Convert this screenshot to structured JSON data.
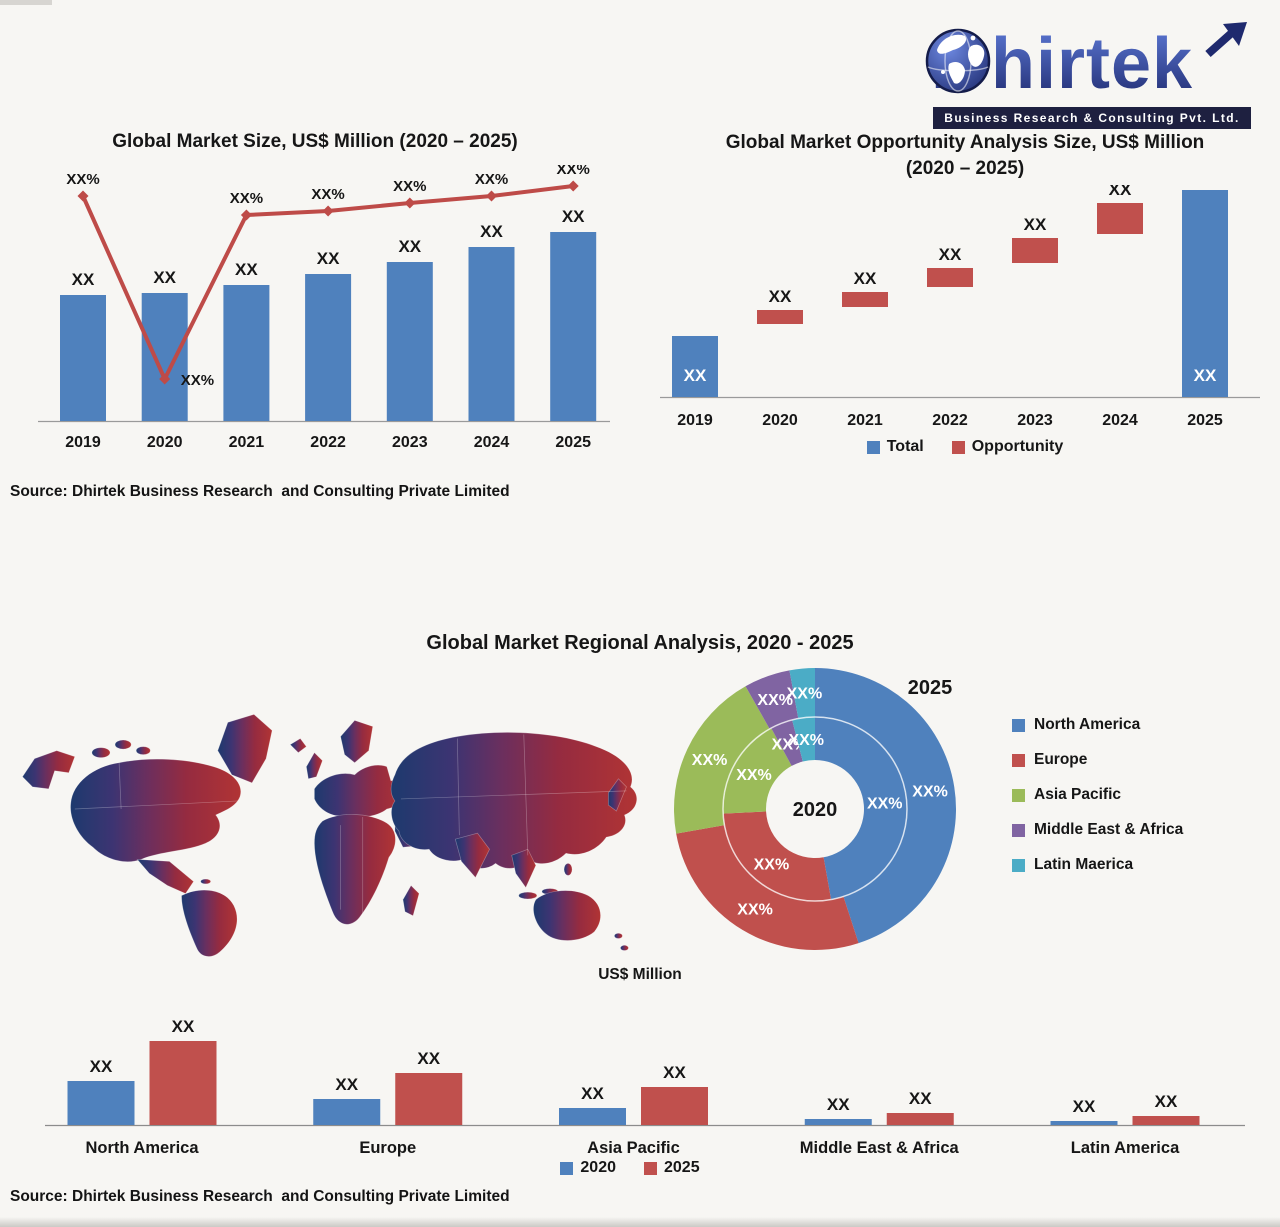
{
  "background": "#f7f6f3",
  "logo": {
    "brand_initial": "D",
    "brand_rest": "hirtek",
    "tagline": "Business Research & Consulting Pvt. Ltd.",
    "brand_color_top": "#5d79d6",
    "brand_color_bottom": "#1f2a6e",
    "tagline_bg": "#1e2040"
  },
  "source_note_top": "Source: Dhirtek Business Research  and Consulting Private Limited",
  "source_note_bottom": "Source: Dhirtek Business Research  and Consulting Private Limited",
  "colors": {
    "blue": "#4F81BD",
    "red": "#C0504D",
    "line_red": "#BE4B48",
    "green": "#9BBB59",
    "purple": "#8064A2",
    "teal": "#4BACC6",
    "text": "#161616",
    "axis": "#9a9a9a"
  },
  "chart_data": [
    {
      "id": "market-size",
      "type": "bar",
      "title": "Global Market Size, US$ Million (2020 – 2025)",
      "categories": [
        "2019",
        "2020",
        "2021",
        "2022",
        "2023",
        "2024",
        "2025"
      ],
      "bar_labels": [
        "XX",
        "XX",
        "XX",
        "XX",
        "XX",
        "XX",
        "XX"
      ],
      "bar_values_rel": [
        126,
        128,
        136,
        147,
        159,
        174,
        189
      ],
      "line_labels": [
        "XX%",
        "XX%",
        "XX%",
        "XX%",
        "XX%",
        "XX%",
        "XX%"
      ],
      "line_values_rel": [
        225,
        42,
        206,
        210,
        218,
        225,
        235
      ],
      "grid": false,
      "bar_color": "#4F81BD",
      "line_color": "#BE4B48"
    },
    {
      "id": "opportunity",
      "type": "waterfall",
      "title_line1": "Global Market Opportunity Analysis Size, US$ Million",
      "title_line2": "(2020 – 2025)",
      "categories": [
        "2019",
        "2020",
        "2021",
        "2022",
        "2023",
        "2024",
        "2025"
      ],
      "bars": [
        {
          "category": "2019",
          "series": "Total",
          "base_rel": 0,
          "height_rel": 61,
          "label": "XX",
          "label_pos": "inside"
        },
        {
          "category": "2020",
          "series": "Opportunity",
          "base_rel": 73,
          "height_rel": 14,
          "label": "XX",
          "label_pos": "above"
        },
        {
          "category": "2021",
          "series": "Opportunity",
          "base_rel": 90,
          "height_rel": 15,
          "label": "XX",
          "label_pos": "above"
        },
        {
          "category": "2022",
          "series": "Opportunity",
          "base_rel": 110,
          "height_rel": 19,
          "label": "XX",
          "label_pos": "above"
        },
        {
          "category": "2023",
          "series": "Opportunity",
          "base_rel": 134,
          "height_rel": 25,
          "label": "XX",
          "label_pos": "above"
        },
        {
          "category": "2024",
          "series": "Opportunity",
          "base_rel": 163,
          "height_rel": 31,
          "label": "XX",
          "label_pos": "above"
        },
        {
          "category": "2025",
          "series": "Total",
          "base_rel": 0,
          "height_rel": 207,
          "label": "XX",
          "label_pos": "inside"
        }
      ],
      "legend": [
        {
          "label": "Total",
          "color": "#4F81BD"
        },
        {
          "label": "Opportunity",
          "color": "#C0504D"
        }
      ]
    },
    {
      "id": "regional-donut",
      "type": "donut",
      "title": "Global Market Regional Analysis, 2020 - 2025",
      "center_year": "2020",
      "outer_year": "2025",
      "legend": [
        {
          "label": "North America",
          "color": "#4F81BD"
        },
        {
          "label": "Europe",
          "color": "#C0504D"
        },
        {
          "label": "Asia Pacific",
          "color": "#9BBB59"
        },
        {
          "label": "Middle East & Africa",
          "color": "#8064A2"
        },
        {
          "label": "Latin Maerica",
          "color": "#4BACC6"
        }
      ],
      "rings": {
        "inner": {
          "year": "2020",
          "shares_pct": [
            47.2,
            27.0,
            17.9,
            3.9,
            4.0
          ],
          "labels": [
            "XX%",
            "XX%",
            "XX%",
            "XX%",
            "XX%"
          ]
        },
        "outer": {
          "year": "2025",
          "shares_pct": [
            45.0,
            27.2,
            19.6,
            5.3,
            2.9
          ],
          "labels": [
            "XX%",
            "XX%",
            "XX%",
            "XX%",
            "XX%"
          ]
        }
      }
    },
    {
      "id": "regional-bars",
      "type": "bar",
      "title": "US$ Million",
      "categories": [
        "North America",
        "Europe",
        "Asia Pacific",
        "Middle East & Africa",
        "Latin America"
      ],
      "series": [
        {
          "name": "2020",
          "color": "#4F81BD",
          "values_rel": [
            44,
            26,
            17,
            6,
            4
          ],
          "labels": [
            "XX",
            "XX",
            "XX",
            "XX",
            "XX"
          ]
        },
        {
          "name": "2025",
          "color": "#C0504D",
          "values_rel": [
            84,
            52,
            38,
            12,
            9
          ],
          "labels": [
            "XX",
            "XX",
            "XX",
            "XX",
            "XX"
          ]
        }
      ]
    }
  ]
}
